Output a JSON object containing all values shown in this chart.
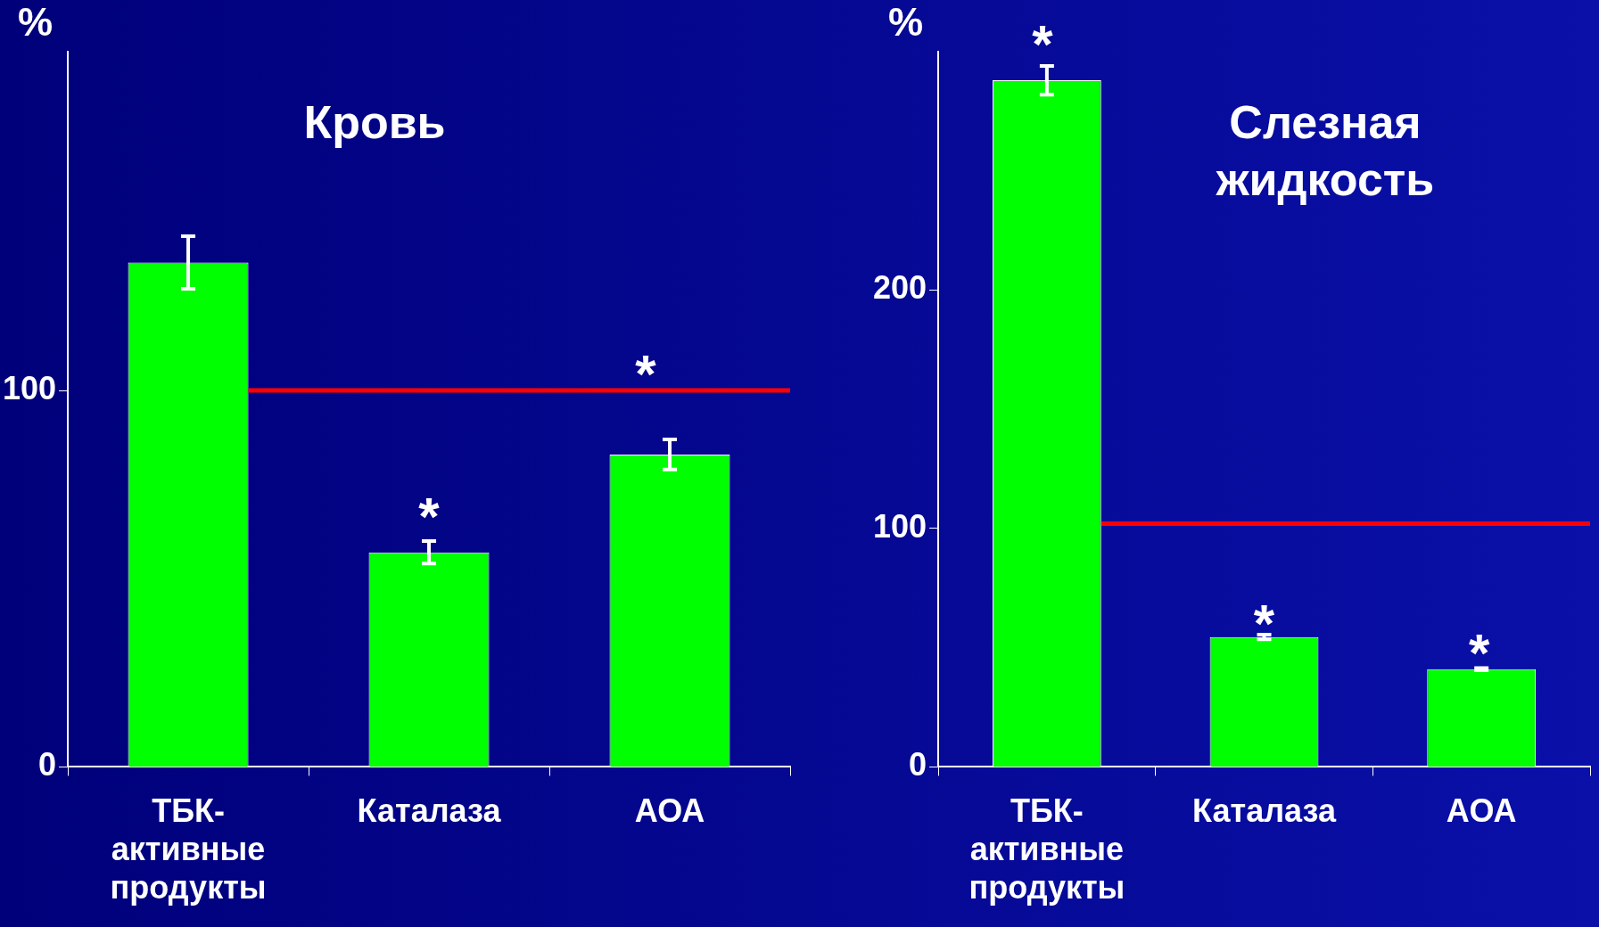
{
  "chart_data": [
    {
      "type": "bar",
      "title": "Кровь",
      "ylabel": "%",
      "categories": [
        "ТБК-активные продукты",
        "Каталаза",
        "АОА"
      ],
      "series": [
        {
          "color": "#00ff00",
          "values": [
            134,
            57,
            83
          ],
          "errors": [
            7,
            3,
            4
          ]
        }
      ],
      "ylim": [
        0,
        190
      ],
      "yticks": [
        0,
        100
      ],
      "grid": false,
      "legend": false,
      "ref_lines": [
        {
          "axis": "y",
          "value": 100,
          "color": "#ff0000"
        }
      ],
      "annotations": [
        "*",
        "*"
      ]
    },
    {
      "type": "bar",
      "title": "Слезная жидкость",
      "ylabel": "%",
      "categories": [
        "ТБК-активные продукты",
        "Каталаза",
        "АОА"
      ],
      "series": [
        {
          "color": "#00ff00",
          "values": [
            288,
            54.5,
            41
          ],
          "errors": [
            6,
            1,
            0.5
          ]
        }
      ],
      "ylim": [
        0,
        300
      ],
      "yticks": [
        0,
        100,
        200
      ],
      "grid": false,
      "legend": false,
      "ref_lines": [
        {
          "axis": "y",
          "value": 102,
          "color": "#ff0000"
        }
      ],
      "annotations": [
        "*",
        "*",
        "*"
      ]
    }
  ]
}
